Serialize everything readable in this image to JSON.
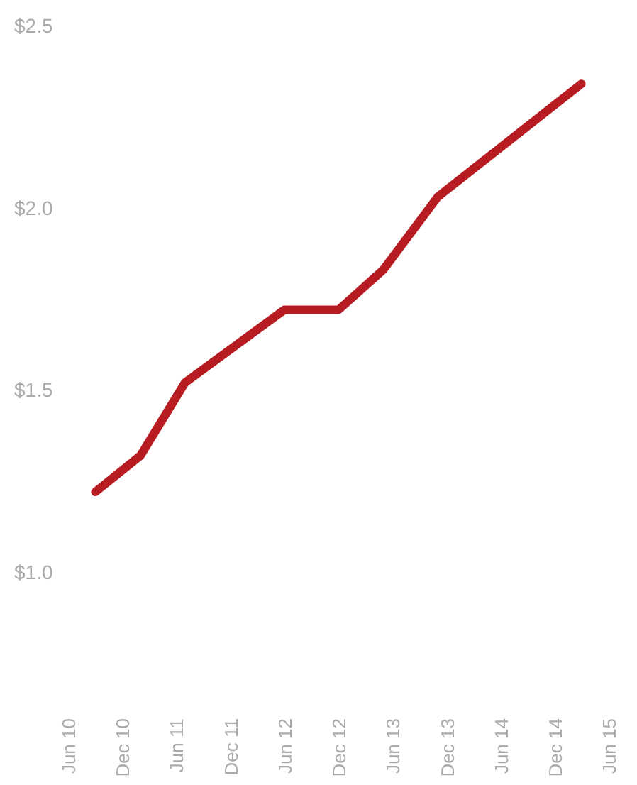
{
  "chart_data": {
    "type": "line",
    "x": [
      "2010-09",
      "2011-02",
      "2011-07",
      "2012-06",
      "2012-12",
      "2013-05",
      "2013-11",
      "2015-03"
    ],
    "series": [
      {
        "color": "#b71c22",
        "values": [
          1.22,
          1.32,
          1.52,
          1.72,
          1.72,
          1.83,
          2.03,
          2.34
        ]
      }
    ],
    "xlim": [
      "2010-06",
      "2015-06"
    ],
    "xticks": [
      {
        "value": "2010-06",
        "label": "Jun 10"
      },
      {
        "value": "2010-12",
        "label": "Dec 10"
      },
      {
        "value": "2011-06",
        "label": "Jun 11"
      },
      {
        "value": "2011-12",
        "label": "Dec 11"
      },
      {
        "value": "2012-06",
        "label": "Jun 12"
      },
      {
        "value": "2012-12",
        "label": "Dec 12"
      },
      {
        "value": "2013-06",
        "label": "Jun 13"
      },
      {
        "value": "2013-12",
        "label": "Dec 13"
      },
      {
        "value": "2014-06",
        "label": "Jun 14"
      },
      {
        "value": "2014-12",
        "label": "Dec 14"
      },
      {
        "value": "2015-06",
        "label": "Jun 15"
      }
    ],
    "ylim": [
      1.0,
      2.5
    ],
    "yticks": [
      {
        "value": 1.0,
        "label": "$1.0"
      },
      {
        "value": 1.5,
        "label": "$1.5"
      },
      {
        "value": 2.0,
        "label": "$2.0"
      },
      {
        "value": 2.5,
        "label": "$2.5"
      }
    ],
    "grid": false,
    "legend": false,
    "marker": "none",
    "line_style": "solid"
  }
}
